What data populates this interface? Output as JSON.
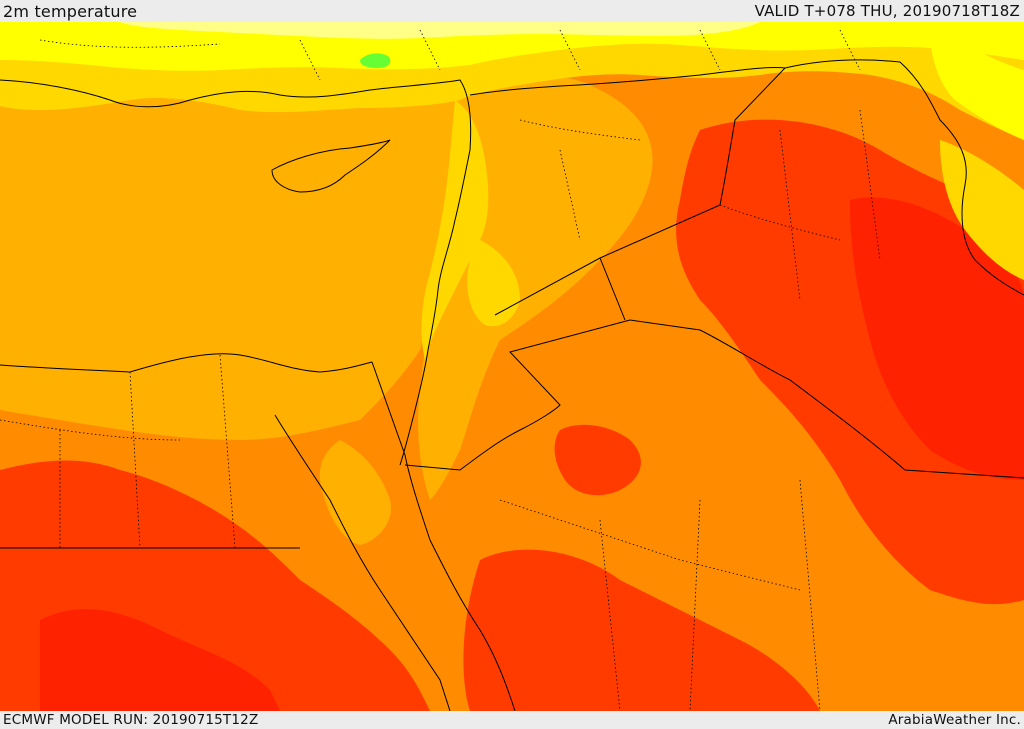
{
  "header": {
    "title": "2m temperature",
    "valid": "VALID T+078 THU, 20190718T18Z"
  },
  "footer": {
    "model_run": "ECMWF MODEL RUN: 20190715T12Z",
    "credit": "ArabiaWeather Inc."
  },
  "map": {
    "field": "2m temperature",
    "palette": {
      "light_yellow": "#ffff99",
      "yellow": "#ffff00",
      "gold": "#ffdd00",
      "light_orange": "#ffb300",
      "orange": "#ff8c00",
      "dark_orange": "#ff6600",
      "red_orange": "#ff3b00",
      "red": "#ff1a00",
      "green": "#66ff33"
    },
    "border_color": "#000000"
  }
}
